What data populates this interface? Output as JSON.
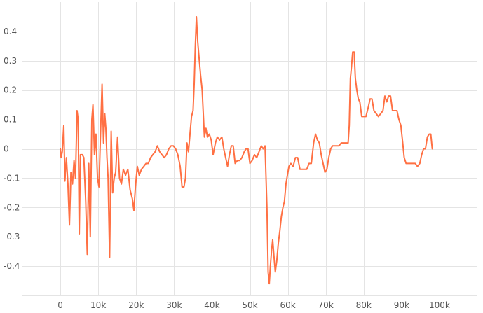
{
  "chart_data": {
    "type": "line",
    "title": "",
    "xlabel": "",
    "ylabel": "",
    "xlim": [
      -10000,
      110000
    ],
    "ylim": [
      -0.5,
      0.5
    ],
    "grid": true,
    "x_ticks": [
      0,
      10000,
      20000,
      30000,
      40000,
      50000,
      60000,
      70000,
      80000,
      90000,
      100000
    ],
    "x_tick_labels": [
      "0",
      "10k",
      "20k",
      "30k",
      "40k",
      "50k",
      "60k",
      "70k",
      "80k",
      "90k",
      "100k"
    ],
    "y_ticks": [
      0.4,
      0.3,
      0.2,
      0.1,
      0,
      -0.1,
      -0.2,
      -0.3,
      -0.4
    ],
    "y_tick_labels": [
      "0.4",
      "0.3",
      "0.2",
      "0.1",
      "0",
      "-0.1",
      "-0.2",
      "-0.3",
      "-0.4"
    ],
    "series": [
      {
        "color": "#ff7043",
        "points": [
          [
            0,
            0.0
          ],
          [
            200,
            -0.03
          ],
          [
            500,
            -0.01
          ],
          [
            900,
            0.08
          ],
          [
            1200,
            -0.11
          ],
          [
            1600,
            -0.03
          ],
          [
            2000,
            -0.12
          ],
          [
            2400,
            -0.26
          ],
          [
            2800,
            -0.08
          ],
          [
            3200,
            -0.12
          ],
          [
            3600,
            -0.04
          ],
          [
            4000,
            -0.1
          ],
          [
            4400,
            0.13
          ],
          [
            4700,
            0.1
          ],
          [
            5000,
            -0.29
          ],
          [
            5300,
            -0.02
          ],
          [
            5800,
            -0.02
          ],
          [
            6200,
            -0.03
          ],
          [
            6700,
            -0.18
          ],
          [
            7100,
            -0.36
          ],
          [
            7500,
            -0.05
          ],
          [
            7900,
            -0.3
          ],
          [
            8300,
            0.1
          ],
          [
            8600,
            0.15
          ],
          [
            9000,
            -0.02
          ],
          [
            9400,
            0.05
          ],
          [
            9800,
            -0.1
          ],
          [
            10200,
            -0.13
          ],
          [
            10600,
            0.05
          ],
          [
            11000,
            0.22
          ],
          [
            11400,
            0.02
          ],
          [
            11700,
            0.12
          ],
          [
            12000,
            0.07
          ],
          [
            12300,
            -0.03
          ],
          [
            12600,
            -0.1
          ],
          [
            13000,
            -0.37
          ],
          [
            13400,
            0.06
          ],
          [
            13800,
            -0.15
          ],
          [
            14200,
            -0.1
          ],
          [
            14600,
            -0.08
          ],
          [
            15100,
            0.04
          ],
          [
            15600,
            -0.1
          ],
          [
            16100,
            -0.12
          ],
          [
            16600,
            -0.07
          ],
          [
            17200,
            -0.09
          ],
          [
            17800,
            -0.07
          ],
          [
            18400,
            -0.14
          ],
          [
            19000,
            -0.17
          ],
          [
            19400,
            -0.21
          ],
          [
            19800,
            -0.13
          ],
          [
            20300,
            -0.06
          ],
          [
            20800,
            -0.09
          ],
          [
            21400,
            -0.07
          ],
          [
            22000,
            -0.06
          ],
          [
            22600,
            -0.05
          ],
          [
            23200,
            -0.05
          ],
          [
            23800,
            -0.03
          ],
          [
            24400,
            -0.02
          ],
          [
            25000,
            -0.01
          ],
          [
            25600,
            0.01
          ],
          [
            26200,
            -0.01
          ],
          [
            26800,
            -0.02
          ],
          [
            27400,
            -0.03
          ],
          [
            28000,
            -0.02
          ],
          [
            28600,
            0.0
          ],
          [
            29200,
            0.01
          ],
          [
            29800,
            0.01
          ],
          [
            30400,
            0.0
          ],
          [
            31000,
            -0.02
          ],
          [
            31600,
            -0.06
          ],
          [
            32100,
            -0.13
          ],
          [
            32600,
            -0.13
          ],
          [
            33000,
            -0.1
          ],
          [
            33400,
            0.02
          ],
          [
            33800,
            -0.01
          ],
          [
            34200,
            0.05
          ],
          [
            34600,
            0.11
          ],
          [
            35000,
            0.13
          ],
          [
            35300,
            0.22
          ],
          [
            35600,
            0.35
          ],
          [
            35900,
            0.45
          ],
          [
            36200,
            0.37
          ],
          [
            36600,
            0.31
          ],
          [
            37000,
            0.25
          ],
          [
            37400,
            0.2
          ],
          [
            37700,
            0.12
          ],
          [
            38000,
            0.04
          ],
          [
            38400,
            0.07
          ],
          [
            38800,
            0.04
          ],
          [
            39300,
            0.05
          ],
          [
            39800,
            0.03
          ],
          [
            40300,
            -0.02
          ],
          [
            40900,
            0.02
          ],
          [
            41400,
            0.04
          ],
          [
            42000,
            0.03
          ],
          [
            42600,
            0.04
          ],
          [
            43100,
            0.0
          ],
          [
            43600,
            -0.03
          ],
          [
            44100,
            -0.06
          ],
          [
            44600,
            -0.02
          ],
          [
            45100,
            0.01
          ],
          [
            45600,
            0.01
          ],
          [
            46100,
            -0.05
          ],
          [
            46700,
            -0.04
          ],
          [
            47300,
            -0.04
          ],
          [
            47900,
            -0.03
          ],
          [
            48500,
            -0.01
          ],
          [
            49000,
            0.0
          ],
          [
            49500,
            0.0
          ],
          [
            50000,
            -0.05
          ],
          [
            50600,
            -0.04
          ],
          [
            51200,
            -0.02
          ],
          [
            51800,
            -0.03
          ],
          [
            52400,
            -0.01
          ],
          [
            53000,
            0.01
          ],
          [
            53500,
            0.0
          ],
          [
            54000,
            0.01
          ],
          [
            54500,
            -0.2
          ],
          [
            54800,
            -0.42
          ],
          [
            55100,
            -0.46
          ],
          [
            55400,
            -0.4
          ],
          [
            55700,
            -0.35
          ],
          [
            56000,
            -0.31
          ],
          [
            56300,
            -0.36
          ],
          [
            56700,
            -0.42
          ],
          [
            57100,
            -0.38
          ],
          [
            57500,
            -0.32
          ],
          [
            57900,
            -0.28
          ],
          [
            58300,
            -0.23
          ],
          [
            58700,
            -0.2
          ],
          [
            59100,
            -0.18
          ],
          [
            59500,
            -0.12
          ],
          [
            59900,
            -0.09
          ],
          [
            60300,
            -0.06
          ],
          [
            60800,
            -0.05
          ],
          [
            61400,
            -0.06
          ],
          [
            62000,
            -0.03
          ],
          [
            62600,
            -0.03
          ],
          [
            63200,
            -0.07
          ],
          [
            63800,
            -0.07
          ],
          [
            64400,
            -0.07
          ],
          [
            65000,
            -0.07
          ],
          [
            65600,
            -0.05
          ],
          [
            66200,
            -0.05
          ],
          [
            66800,
            0.02
          ],
          [
            67300,
            0.05
          ],
          [
            67800,
            0.03
          ],
          [
            68300,
            0.02
          ],
          [
            68800,
            -0.02
          ],
          [
            69300,
            -0.05
          ],
          [
            69800,
            -0.08
          ],
          [
            70300,
            -0.07
          ],
          [
            70800,
            -0.03
          ],
          [
            71300,
            0.0
          ],
          [
            71800,
            0.01
          ],
          [
            72300,
            0.01
          ],
          [
            72900,
            0.01
          ],
          [
            73500,
            0.01
          ],
          [
            74100,
            0.02
          ],
          [
            74700,
            0.02
          ],
          [
            75300,
            0.02
          ],
          [
            75900,
            0.02
          ],
          [
            76200,
            0.08
          ],
          [
            76500,
            0.24
          ],
          [
            76800,
            0.28
          ],
          [
            77100,
            0.33
          ],
          [
            77500,
            0.33
          ],
          [
            77800,
            0.24
          ],
          [
            78200,
            0.2
          ],
          [
            78600,
            0.17
          ],
          [
            79000,
            0.16
          ],
          [
            79500,
            0.11
          ],
          [
            80000,
            0.11
          ],
          [
            80600,
            0.11
          ],
          [
            81200,
            0.14
          ],
          [
            81700,
            0.17
          ],
          [
            82200,
            0.17
          ],
          [
            82700,
            0.13
          ],
          [
            83300,
            0.12
          ],
          [
            83900,
            0.11
          ],
          [
            84500,
            0.12
          ],
          [
            85100,
            0.13
          ],
          [
            85600,
            0.18
          ],
          [
            86100,
            0.16
          ],
          [
            86600,
            0.18
          ],
          [
            87100,
            0.18
          ],
          [
            87600,
            0.13
          ],
          [
            88200,
            0.13
          ],
          [
            88800,
            0.13
          ],
          [
            89300,
            0.1
          ],
          [
            89800,
            0.08
          ],
          [
            90300,
            0.02
          ],
          [
            90700,
            -0.03
          ],
          [
            91200,
            -0.05
          ],
          [
            91800,
            -0.05
          ],
          [
            92400,
            -0.05
          ],
          [
            93000,
            -0.05
          ],
          [
            93600,
            -0.05
          ],
          [
            94200,
            -0.06
          ],
          [
            94800,
            -0.05
          ],
          [
            95300,
            -0.02
          ],
          [
            95800,
            0.0
          ],
          [
            96300,
            0.0
          ],
          [
            96800,
            0.04
          ],
          [
            97300,
            0.05
          ],
          [
            97700,
            0.05
          ],
          [
            98100,
            0.0
          ]
        ]
      }
    ]
  }
}
